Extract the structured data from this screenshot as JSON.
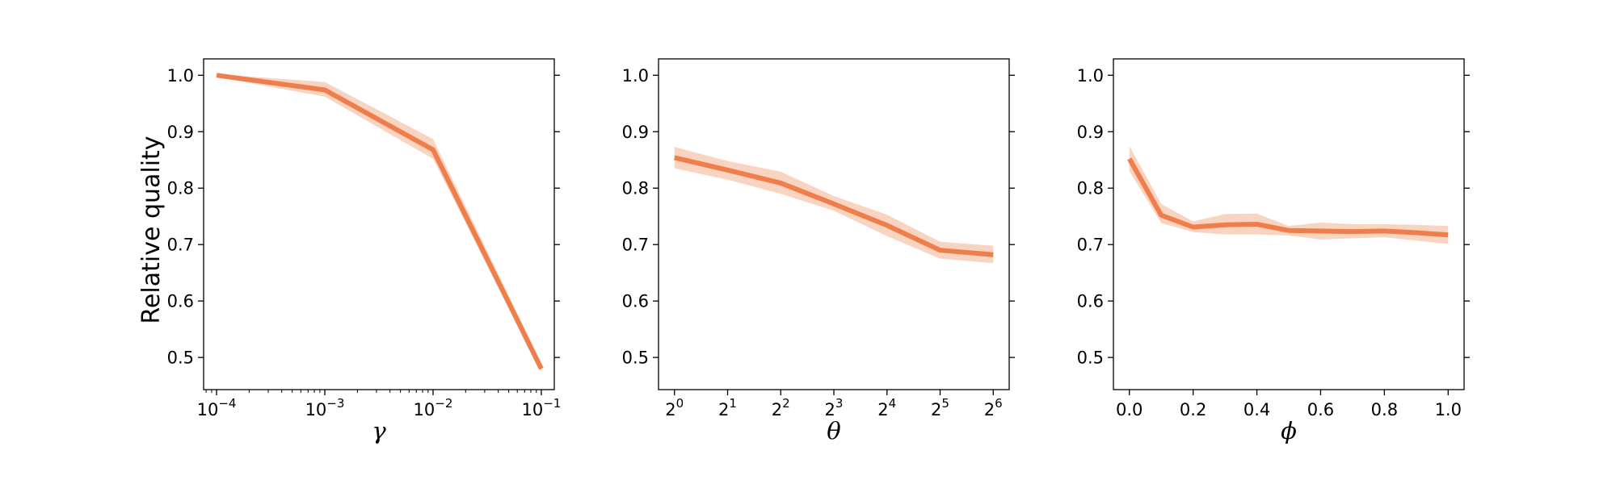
{
  "colors": {
    "line": "#ee7f4c",
    "band": "#f8cdb6"
  },
  "ylabel": "Relative quality",
  "chart_data": [
    {
      "type": "line",
      "xscale": "log",
      "xlabel": "γ",
      "x": [
        0.0001,
        0.001,
        0.01,
        0.1
      ],
      "xticks": [
        {
          "value": 0.0001,
          "base": "10",
          "exp": "−4"
        },
        {
          "value": 0.001,
          "base": "10",
          "exp": "−3"
        },
        {
          "value": 0.01,
          "base": "10",
          "exp": "−2"
        },
        {
          "value": 0.1,
          "base": "10",
          "exp": "−1"
        }
      ],
      "xlim": [
        7.59e-05,
        0.1318
      ],
      "ylim": [
        0.443,
        1.029
      ],
      "yticks": [
        0.5,
        0.6,
        0.7,
        0.8,
        0.9,
        1.0
      ],
      "ytick_labels": [
        "0.5",
        "0.6",
        "0.7",
        "0.8",
        "0.9",
        "1.0"
      ],
      "series": [
        {
          "y": [
            1.0,
            0.974,
            0.868,
            0.48
          ],
          "lower": [
            0.997,
            0.962,
            0.852,
            0.474
          ],
          "upper": [
            1.002,
            0.988,
            0.887,
            0.49
          ]
        }
      ]
    },
    {
      "type": "line",
      "xscale": "log2",
      "xlabel": "θ",
      "x": [
        1,
        2,
        4,
        8,
        16,
        32,
        64
      ],
      "xticks": [
        {
          "value": 1,
          "base": "2",
          "exp": "0"
        },
        {
          "value": 2,
          "base": "2",
          "exp": "1"
        },
        {
          "value": 4,
          "base": "2",
          "exp": "2"
        },
        {
          "value": 8,
          "base": "2",
          "exp": "3"
        },
        {
          "value": 16,
          "base": "2",
          "exp": "4"
        },
        {
          "value": 32,
          "base": "2",
          "exp": "5"
        },
        {
          "value": 64,
          "base": "2",
          "exp": "6"
        }
      ],
      "xlim": [
        0.812,
        78.8
      ],
      "ylim": [
        0.443,
        1.029
      ],
      "yticks": [
        0.5,
        0.6,
        0.7,
        0.8,
        0.9,
        1.0
      ],
      "ytick_labels": [
        "0.5",
        "0.6",
        "0.7",
        "0.8",
        "0.9",
        "1.0"
      ],
      "series": [
        {
          "y": [
            0.854,
            0.832,
            0.809,
            0.772,
            0.734,
            0.69,
            0.682
          ],
          "lower": [
            0.835,
            0.815,
            0.79,
            0.76,
            0.715,
            0.675,
            0.667
          ],
          "upper": [
            0.873,
            0.848,
            0.829,
            0.786,
            0.753,
            0.705,
            0.698
          ]
        }
      ]
    },
    {
      "type": "line",
      "xscale": "linear",
      "xlabel": "ϕ",
      "x": [
        0.0,
        0.1,
        0.2,
        0.3,
        0.4,
        0.5,
        0.6,
        0.7,
        0.8,
        0.9,
        1.0
      ],
      "xticks": [
        {
          "value": 0.0,
          "label": "0.0"
        },
        {
          "value": 0.2,
          "label": "0.2"
        },
        {
          "value": 0.4,
          "label": "0.4"
        },
        {
          "value": 0.6,
          "label": "0.6"
        },
        {
          "value": 0.8,
          "label": "0.8"
        },
        {
          "value": 1.0,
          "label": "1.0"
        }
      ],
      "xlim": [
        -0.05,
        1.05
      ],
      "ylim": [
        0.443,
        1.029
      ],
      "yticks": [
        0.5,
        0.6,
        0.7,
        0.8,
        0.9,
        1.0
      ],
      "ytick_labels": [
        "0.5",
        "0.6",
        "0.7",
        "0.8",
        "0.9",
        "1.0"
      ],
      "series": [
        {
          "y": [
            0.852,
            0.752,
            0.731,
            0.735,
            0.736,
            0.725,
            0.724,
            0.723,
            0.724,
            0.721,
            0.717
          ],
          "lower": [
            0.83,
            0.738,
            0.722,
            0.718,
            0.718,
            0.716,
            0.709,
            0.711,
            0.713,
            0.707,
            0.701
          ],
          "upper": [
            0.875,
            0.772,
            0.741,
            0.754,
            0.755,
            0.733,
            0.739,
            0.736,
            0.736,
            0.735,
            0.733
          ]
        }
      ]
    }
  ]
}
